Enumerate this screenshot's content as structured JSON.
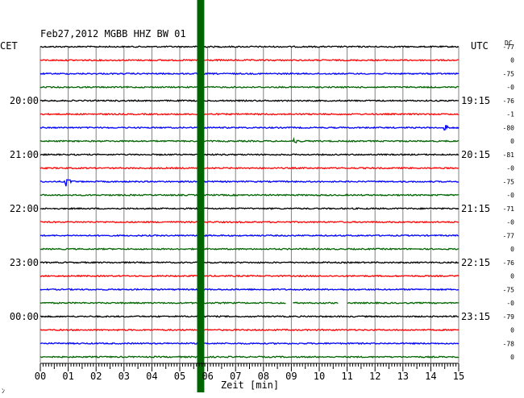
{
  "header": {
    "title": "Feb27,2012   MGBB HHZ BW 01",
    "left_zone": "CET",
    "right_zone": "UTC",
    "dc_label": "DC"
  },
  "chart_data": {
    "type": "line",
    "title": "Feb27,2012   MGBB HHZ BW 01",
    "xlabel": "Zeit [min]",
    "xlim": [
      0,
      15
    ],
    "x_ticks": [
      "00",
      "01",
      "02",
      "03",
      "04",
      "05",
      "06",
      "07",
      "08",
      "09",
      "10",
      "11",
      "12",
      "13",
      "14",
      "15"
    ],
    "grid": true,
    "trace_colors": [
      "#000000",
      "#ff0000",
      "#0000ff",
      "#006400"
    ],
    "left_time_labels": [
      "20:00",
      "21:00",
      "22:00",
      "23:00",
      "00:00"
    ],
    "right_time_labels": [
      "19:15",
      "20:15",
      "21:15",
      "22:15",
      "23:15"
    ],
    "hour_label_rows": [
      4,
      8,
      12,
      16,
      20
    ],
    "dc_offsets": [
      "-77",
      "0",
      "-75",
      "-0",
      "-76",
      "-1",
      "-80",
      "0",
      "-81",
      "-0",
      "-75",
      "-0",
      "-71",
      "-0",
      "-77",
      "0",
      "-76",
      "0",
      "-75",
      "-0",
      "-79",
      "0",
      "-78",
      "0"
    ],
    "events": [
      {
        "trace": 6,
        "minute": 14.5,
        "amplitude": "medium",
        "label": ""
      },
      {
        "trace": 10,
        "minute": 0.9,
        "amplitude": "medium",
        "label": ""
      },
      {
        "trace": 7,
        "minute": 9.1,
        "amplitude": "small",
        "label": ""
      }
    ],
    "disturbance": {
      "minute_start": 5.65,
      "minute_end": 5.85,
      "color": "#006400",
      "note": ""
    },
    "gaps": [
      {
        "trace": 19,
        "minute_start": 8.8,
        "minute_end": 9.05
      },
      {
        "trace": 19,
        "minute_start": 10.7,
        "minute_end": 11.0
      }
    ]
  },
  "footer": {
    "mark": "ﾝ"
  }
}
